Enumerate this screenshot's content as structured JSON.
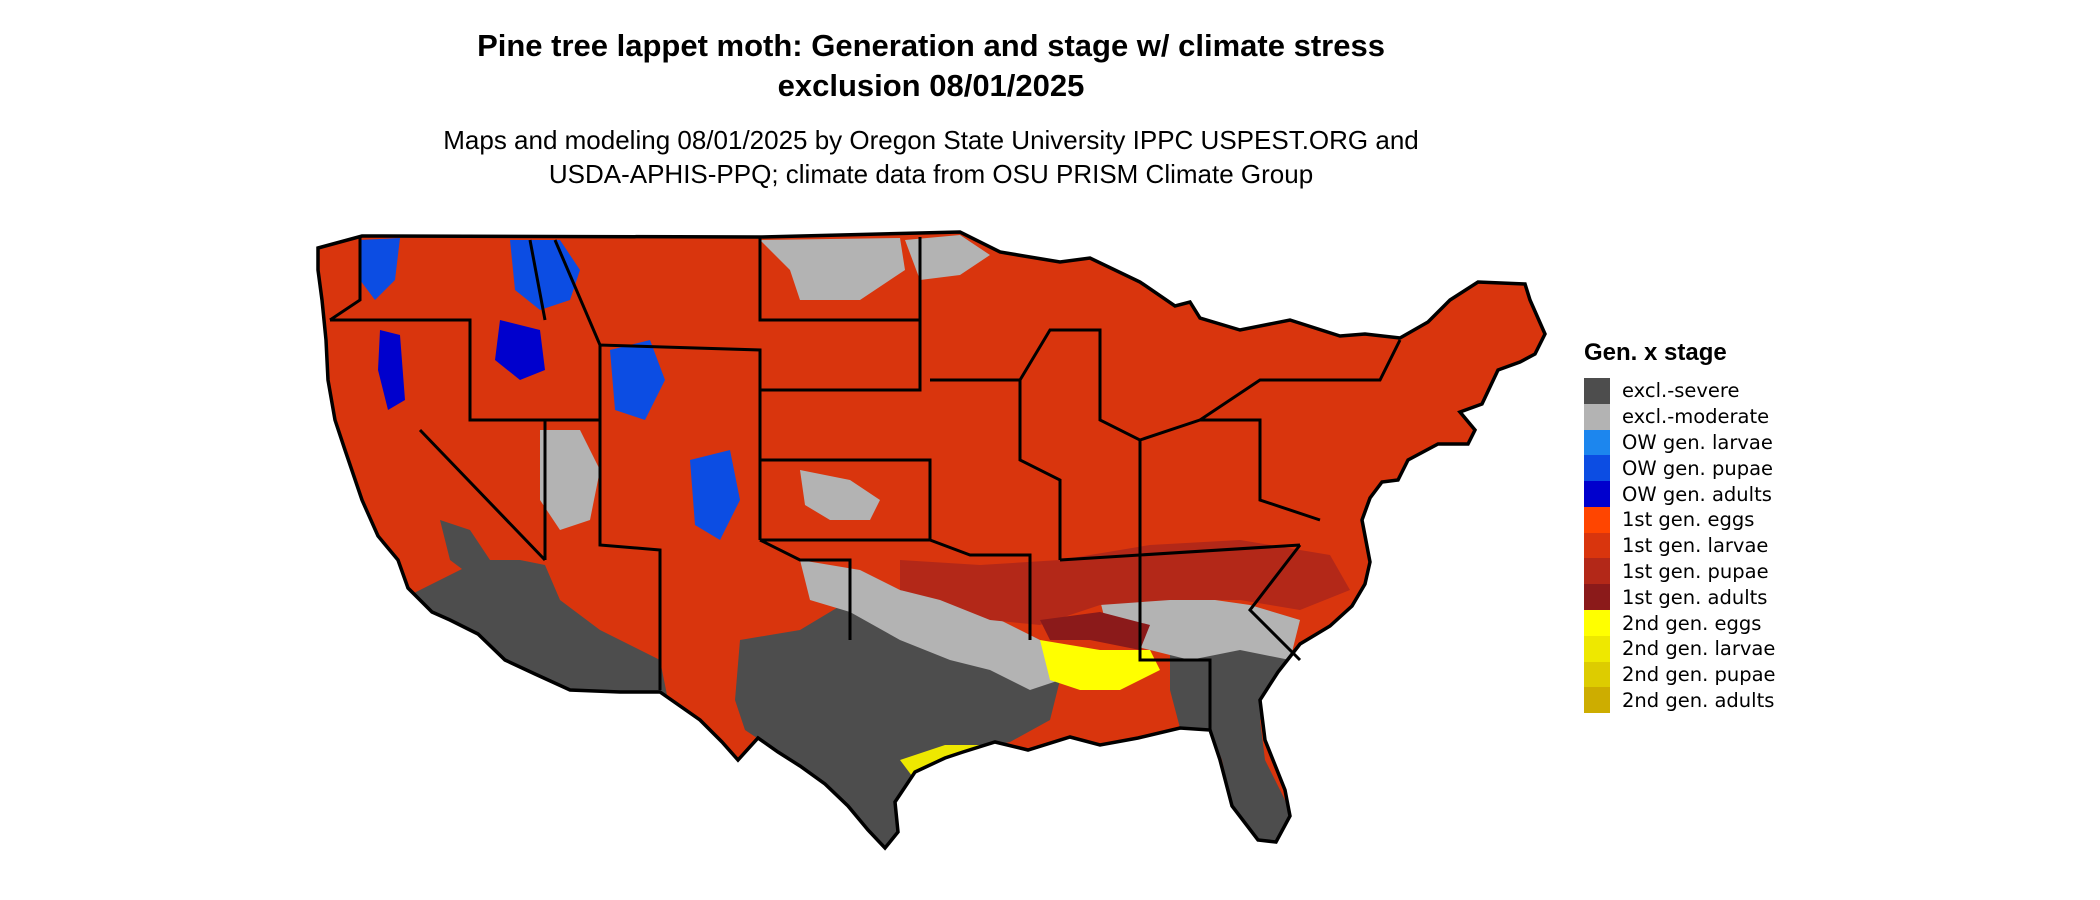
{
  "title_line1": "Pine tree lappet moth: Generation and stage w/ climate stress",
  "title_line2": "exclusion 08/01/2025",
  "subtitle_line1": "Maps and modeling 08/01/2025 by Oregon State University IPPC USPEST.ORG and",
  "subtitle_line2": "USDA-APHIS-PPQ; climate data from OSU PRISM Climate Group",
  "legend": {
    "title": "Gen. x stage",
    "items": [
      {
        "label": "excl.-severe",
        "color": "#4d4d4d"
      },
      {
        "label": "excl.-moderate",
        "color": "#b3b3b3"
      },
      {
        "label": "OW gen. larvae",
        "color": "#1c86ee"
      },
      {
        "label": "OW gen. pupae",
        "color": "#0c4de3"
      },
      {
        "label": "OW gen. adults",
        "color": "#0000cd"
      },
      {
        "label": "1st gen. eggs",
        "color": "#ff4500"
      },
      {
        "label": "1st gen. larvae",
        "color": "#d9350d"
      },
      {
        "label": "1st gen. pupae",
        "color": "#b32818"
      },
      {
        "label": "1st gen. adults",
        "color": "#8b1a1a"
      },
      {
        "label": "2nd gen. eggs",
        "color": "#ffff00"
      },
      {
        "label": "2nd gen. larvae",
        "color": "#eee800"
      },
      {
        "label": "2nd gen. pupae",
        "color": "#ddcc00"
      },
      {
        "label": "2nd gen. adults",
        "color": "#cdad00"
      }
    ]
  }
}
